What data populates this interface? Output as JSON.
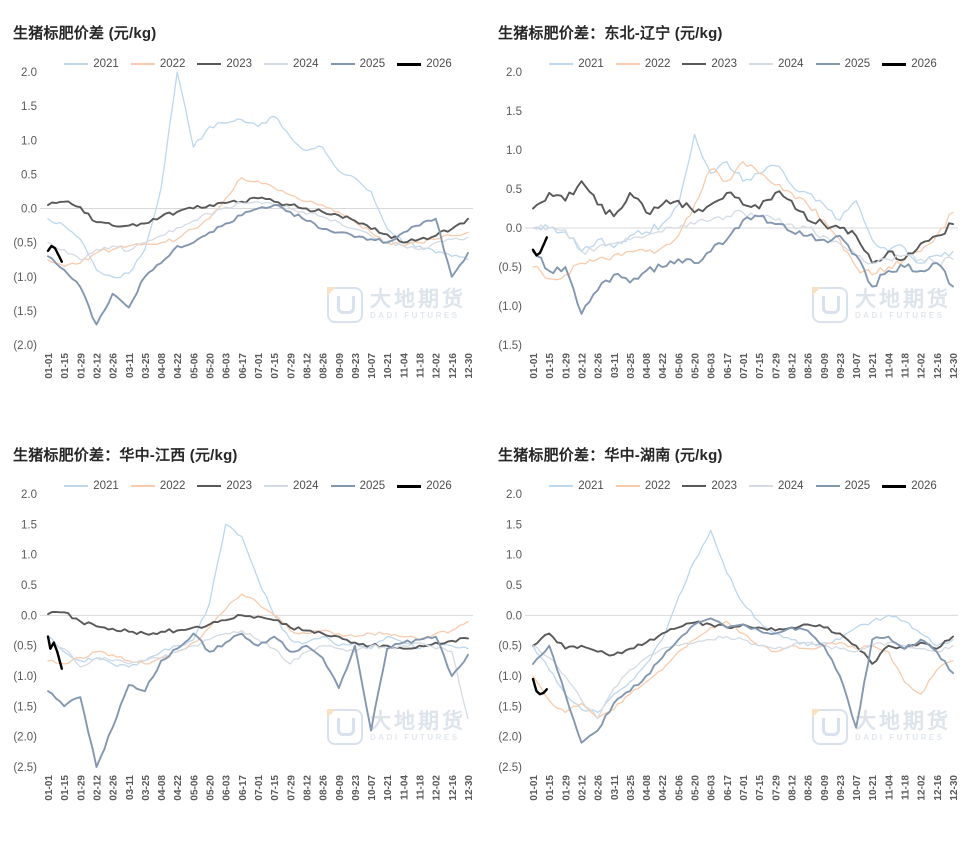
{
  "watermark": {
    "name": "大地期货",
    "subname": "DADI FUTURES"
  },
  "chart_data": [
    {
      "type": "line",
      "title": "生猪标肥价差 (元/kg)",
      "y_tick_interval": 0.5,
      "ylim": [
        -2.0,
        2.0
      ],
      "y_ticks": [
        "2.0",
        "1.5",
        "1.0",
        "0.5",
        "0.0",
        "(0.5)",
        "(1.0)",
        "(1.5)",
        "(2.0)"
      ],
      "x_tick_labels": [
        "01-01",
        "01-15",
        "01-29",
        "02-12",
        "02-26",
        "03-11",
        "03-25",
        "04-08",
        "04-22",
        "05-06",
        "05-20",
        "06-03",
        "06-17",
        "07-01",
        "07-15",
        "07-29",
        "08-12",
        "08-26",
        "09-09",
        "09-23",
        "10-07",
        "10-21",
        "11-04",
        "11-18",
        "12-02",
        "12-16",
        "12-30"
      ],
      "zero_gridline": true,
      "legend_position": "top",
      "series": [
        {
          "name": "2021",
          "color": "#bdd7ee",
          "values": [
            -0.15,
            -0.25,
            -0.45,
            -0.9,
            -1.0,
            -0.95,
            -0.6,
            0.3,
            2.0,
            0.9,
            1.2,
            1.25,
            1.3,
            1.2,
            1.35,
            1.05,
            0.85,
            0.9,
            0.55,
            0.45,
            0.25,
            -0.3,
            -0.5,
            -0.55,
            -0.65,
            -0.7,
            -0.75
          ]
        },
        {
          "name": "2022",
          "color": "#f8cbad",
          "values": [
            -0.75,
            -0.85,
            -0.8,
            -0.65,
            -0.6,
            -0.55,
            -0.52,
            -0.5,
            -0.45,
            -0.3,
            -0.15,
            0.15,
            0.45,
            0.4,
            0.3,
            0.2,
            0.1,
            0.05,
            -0.05,
            -0.2,
            -0.35,
            -0.5,
            -0.55,
            -0.5,
            -0.45,
            -0.4,
            -0.35
          ]
        },
        {
          "name": "2023",
          "color": "#595959",
          "values": [
            0.05,
            0.1,
            0.02,
            -0.2,
            -0.25,
            -0.25,
            -0.22,
            -0.12,
            -0.05,
            0.0,
            0.05,
            0.08,
            0.1,
            0.15,
            0.1,
            0.05,
            0.0,
            -0.05,
            -0.1,
            -0.18,
            -0.3,
            -0.38,
            -0.5,
            -0.45,
            -0.4,
            -0.3,
            -0.15
          ]
        },
        {
          "name": "2024",
          "color": "#d5dbe4",
          "values": [
            -0.5,
            -0.6,
            -0.75,
            -0.6,
            -0.55,
            -0.62,
            -0.5,
            -0.4,
            -0.28,
            -0.18,
            -0.08,
            0.02,
            0.08,
            0.1,
            0.05,
            0.0,
            -0.08,
            -0.12,
            -0.2,
            -0.3,
            -0.4,
            -0.48,
            -0.55,
            -0.6,
            -0.5,
            -0.45,
            -0.42
          ]
        },
        {
          "name": "2025",
          "color": "#8497b0",
          "values": [
            -0.7,
            -0.9,
            -1.15,
            -1.7,
            -1.25,
            -1.45,
            -1.0,
            -0.8,
            -0.55,
            -0.5,
            -0.35,
            -0.22,
            -0.1,
            0.0,
            0.05,
            -0.05,
            -0.18,
            -0.3,
            -0.35,
            -0.42,
            -0.45,
            -0.5,
            -0.35,
            -0.25,
            -0.15,
            -1.0,
            -0.65
          ]
        },
        {
          "name": "2026",
          "color": "#000000",
          "x_days": [
            0,
            3,
            6,
            9,
            12
          ],
          "values": [
            -0.62,
            -0.55,
            -0.58,
            -0.68,
            -0.78
          ]
        }
      ]
    },
    {
      "type": "line",
      "title": "生猪标肥价差：东北-辽宁 (元/kg)",
      "y_tick_interval": 0.5,
      "ylim": [
        -1.5,
        2.0
      ],
      "y_ticks": [
        "2.0",
        "1.5",
        "1.0",
        "0.5",
        "0.0",
        "(0.5)",
        "(1.0)",
        "(1.5)"
      ],
      "x_tick_labels": [
        "01-01",
        "01-15",
        "01-29",
        "02-12",
        "02-26",
        "03-11",
        "03-25",
        "04-08",
        "04-22",
        "05-06",
        "05-20",
        "06-03",
        "06-17",
        "07-01",
        "07-15",
        "07-29",
        "08-12",
        "08-26",
        "09-09",
        "09-23",
        "10-07",
        "10-21",
        "11-04",
        "11-18",
        "12-02",
        "12-16",
        "12-30"
      ],
      "zero_gridline": true,
      "legend_position": "top",
      "series": [
        {
          "name": "2021",
          "color": "#bdd7ee",
          "values": [
            0.0,
            0.0,
            -0.05,
            -0.3,
            -0.15,
            -0.25,
            -0.1,
            -0.05,
            0.05,
            0.3,
            1.2,
            0.7,
            0.85,
            0.6,
            0.7,
            0.8,
            0.55,
            0.45,
            0.3,
            0.1,
            0.35,
            -0.15,
            -0.3,
            -0.25,
            -0.45,
            -0.35,
            -0.3
          ]
        },
        {
          "name": "2022",
          "color": "#f8cbad",
          "values": [
            -0.5,
            -0.65,
            -0.6,
            -0.45,
            -0.4,
            -0.35,
            -0.3,
            -0.3,
            -0.25,
            -0.1,
            0.3,
            0.75,
            0.6,
            0.85,
            0.7,
            0.55,
            0.45,
            0.3,
            0.1,
            -0.15,
            -0.5,
            -0.6,
            -0.5,
            -0.4,
            -0.3,
            -0.1,
            0.2
          ]
        },
        {
          "name": "2023",
          "color": "#595959",
          "values": [
            0.25,
            0.45,
            0.35,
            0.6,
            0.3,
            0.15,
            0.45,
            0.2,
            0.3,
            0.35,
            0.2,
            0.3,
            0.45,
            0.3,
            0.25,
            0.45,
            0.35,
            0.1,
            0.05,
            0.0,
            -0.1,
            -0.45,
            -0.3,
            -0.4,
            -0.2,
            -0.1,
            0.05
          ]
        },
        {
          "name": "2024",
          "color": "#d5dbe4",
          "values": [
            0.0,
            0.0,
            -0.02,
            -0.3,
            -0.25,
            -0.2,
            -0.15,
            -0.1,
            -0.05,
            0.0,
            0.05,
            0.1,
            0.15,
            0.2,
            0.15,
            0.1,
            0.05,
            0.0,
            -0.1,
            -0.2,
            -0.35,
            -0.45,
            -0.4,
            -0.35,
            -0.4,
            -0.45,
            -0.4
          ]
        },
        {
          "name": "2025",
          "color": "#8497b0",
          "values": [
            -0.3,
            -0.55,
            -0.5,
            -1.1,
            -0.8,
            -0.6,
            -0.7,
            -0.55,
            -0.5,
            -0.4,
            -0.45,
            -0.3,
            -0.15,
            0.1,
            0.15,
            0.05,
            -0.05,
            -0.1,
            -0.15,
            -0.1,
            -0.35,
            -0.75,
            -0.55,
            -0.5,
            -0.55,
            -0.45,
            -0.75
          ]
        },
        {
          "name": "2026",
          "color": "#000000",
          "x_days": [
            0,
            3,
            6,
            9,
            12
          ],
          "values": [
            -0.28,
            -0.35,
            -0.32,
            -0.22,
            -0.12
          ]
        }
      ]
    },
    {
      "type": "line",
      "title": "生猪标肥价差：华中-江西 (元/kg)",
      "y_tick_interval": 0.5,
      "ylim": [
        -2.5,
        2.0
      ],
      "y_ticks": [
        "2.0",
        "1.5",
        "1.0",
        "0.5",
        "0.0",
        "(0.5)",
        "(1.0)",
        "(1.5)",
        "(2.0)",
        "(2.5)"
      ],
      "x_tick_labels": [
        "01-01",
        "01-15",
        "01-29",
        "02-12",
        "02-26",
        "03-11",
        "03-25",
        "04-08",
        "04-22",
        "05-06",
        "05-20",
        "06-03",
        "06-17",
        "07-01",
        "07-15",
        "07-29",
        "08-12",
        "08-26",
        "09-09",
        "09-23",
        "10-07",
        "10-21",
        "11-04",
        "11-18",
        "12-02",
        "12-16",
        "12-30"
      ],
      "zero_gridline": true,
      "legend_position": "top",
      "series": [
        {
          "name": "2021",
          "color": "#bdd7ee",
          "values": [
            -0.35,
            -0.6,
            -0.75,
            -0.7,
            -0.8,
            -0.85,
            -0.75,
            -0.6,
            -0.5,
            -0.4,
            0.2,
            1.5,
            1.3,
            0.6,
            0.0,
            -0.4,
            -0.45,
            -0.35,
            -0.5,
            -0.45,
            -0.55,
            -0.35,
            -0.45,
            -0.55,
            -0.45,
            -0.5,
            -0.55
          ]
        },
        {
          "name": "2022",
          "color": "#f8cbad",
          "values": [
            -0.75,
            -0.8,
            -0.7,
            -0.6,
            -0.65,
            -0.75,
            -0.8,
            -0.7,
            -0.6,
            -0.45,
            -0.2,
            0.1,
            0.35,
            0.2,
            0.0,
            -0.25,
            -0.3,
            -0.25,
            -0.3,
            -0.35,
            -0.3,
            -0.3,
            -0.35,
            -0.4,
            -0.3,
            -0.25,
            -0.1
          ]
        },
        {
          "name": "2023",
          "color": "#595959",
          "values": [
            0.02,
            0.05,
            -0.1,
            -0.18,
            -0.22,
            -0.27,
            -0.3,
            -0.27,
            -0.25,
            -0.2,
            -0.15,
            -0.08,
            0.0,
            -0.02,
            -0.08,
            -0.2,
            -0.25,
            -0.3,
            -0.35,
            -0.45,
            -0.5,
            -0.5,
            -0.55,
            -0.5,
            -0.45,
            -0.42,
            -0.38
          ]
        },
        {
          "name": "2024",
          "color": "#d5dbe4",
          "values": [
            -0.45,
            -0.55,
            -0.85,
            -0.7,
            -0.75,
            -0.8,
            -0.75,
            -0.7,
            -0.6,
            -0.5,
            -0.4,
            -0.3,
            -0.25,
            -0.4,
            -0.55,
            -0.8,
            -0.6,
            -0.5,
            -0.55,
            -0.6,
            -0.5,
            -0.55,
            -0.5,
            -0.45,
            -0.55,
            -0.6,
            -1.7
          ]
        },
        {
          "name": "2025",
          "color": "#8497b0",
          "values": [
            -1.25,
            -1.5,
            -1.35,
            -2.5,
            -1.85,
            -1.15,
            -1.25,
            -0.75,
            -0.55,
            -0.3,
            -0.6,
            -0.45,
            -0.3,
            -0.5,
            -0.35,
            -0.6,
            -0.5,
            -0.7,
            -1.2,
            -0.5,
            -1.9,
            -0.55,
            -0.45,
            -0.4,
            -0.35,
            -1.0,
            -0.65
          ]
        },
        {
          "name": "2026",
          "color": "#000000",
          "x_days": [
            0,
            2,
            5,
            8,
            12
          ],
          "values": [
            -0.35,
            -0.55,
            -0.45,
            -0.6,
            -0.88
          ]
        }
      ]
    },
    {
      "type": "line",
      "title": "生猪标肥价差：华中-湖南 (元/kg)",
      "y_tick_interval": 0.5,
      "ylim": [
        -2.5,
        2.0
      ],
      "y_ticks": [
        "2.0",
        "1.5",
        "1.0",
        "0.5",
        "0.0",
        "(0.5)",
        "(1.0)",
        "(1.5)",
        "(2.0)",
        "(2.5)"
      ],
      "x_tick_labels": [
        "01-01",
        "01-15",
        "01-29",
        "02-12",
        "02-26",
        "03-11",
        "03-25",
        "04-08",
        "04-22",
        "05-06",
        "05-20",
        "06-03",
        "06-17",
        "07-01",
        "07-15",
        "07-29",
        "08-12",
        "08-26",
        "09-09",
        "09-23",
        "10-07",
        "10-21",
        "11-04",
        "11-18",
        "12-02",
        "12-16",
        "12-30"
      ],
      "zero_gridline": true,
      "legend_position": "top",
      "series": [
        {
          "name": "2021",
          "color": "#bdd7ee",
          "values": [
            -0.5,
            -0.9,
            -1.3,
            -1.55,
            -1.6,
            -1.3,
            -1.1,
            -0.8,
            -0.4,
            0.3,
            0.9,
            1.4,
            0.7,
            0.2,
            -0.1,
            -0.3,
            -0.4,
            -0.5,
            -0.45,
            -0.4,
            -0.2,
            -0.1,
            0.0,
            -0.1,
            -0.3,
            -0.5,
            -0.4
          ]
        },
        {
          "name": "2022",
          "color": "#f8cbad",
          "values": [
            -1.0,
            -1.4,
            -1.6,
            -1.45,
            -1.7,
            -1.55,
            -1.3,
            -1.1,
            -0.9,
            -0.6,
            -0.4,
            -0.2,
            -0.1,
            -0.3,
            -0.5,
            -0.6,
            -0.5,
            -0.55,
            -0.5,
            -0.45,
            -0.55,
            -0.5,
            -0.6,
            -1.1,
            -1.3,
            -0.9,
            -0.75
          ]
        },
        {
          "name": "2023",
          "color": "#595959",
          "values": [
            -0.5,
            -0.3,
            -0.55,
            -0.5,
            -0.6,
            -0.65,
            -0.55,
            -0.45,
            -0.3,
            -0.2,
            -0.12,
            -0.15,
            -0.2,
            -0.15,
            -0.2,
            -0.25,
            -0.2,
            -0.15,
            -0.2,
            -0.3,
            -0.5,
            -0.8,
            -0.5,
            -0.55,
            -0.45,
            -0.55,
            -0.35
          ]
        },
        {
          "name": "2024",
          "color": "#d5dbe4",
          "values": [
            -0.5,
            -0.7,
            -1.0,
            -1.4,
            -1.7,
            -1.2,
            -0.9,
            -0.7,
            -0.55,
            -0.5,
            -0.45,
            -0.4,
            -0.35,
            -0.4,
            -0.5,
            -0.55,
            -0.5,
            -0.45,
            -0.5,
            -0.55,
            -0.6,
            -0.5,
            -0.45,
            -0.5,
            -0.55,
            -0.6,
            -0.5
          ]
        },
        {
          "name": "2025",
          "color": "#8497b0",
          "values": [
            -0.8,
            -0.5,
            -1.3,
            -2.1,
            -1.9,
            -1.45,
            -1.25,
            -1.0,
            -0.7,
            -0.4,
            -0.15,
            -0.05,
            -0.2,
            -0.15,
            -0.25,
            -0.3,
            -0.2,
            -0.25,
            -0.5,
            -1.0,
            -1.85,
            -0.4,
            -0.35,
            -0.55,
            -0.4,
            -0.6,
            -0.95
          ]
        },
        {
          "name": "2026",
          "color": "#000000",
          "x_days": [
            0,
            3,
            6,
            9,
            12
          ],
          "values": [
            -1.05,
            -1.25,
            -1.3,
            -1.28,
            -1.22
          ]
        }
      ]
    }
  ]
}
